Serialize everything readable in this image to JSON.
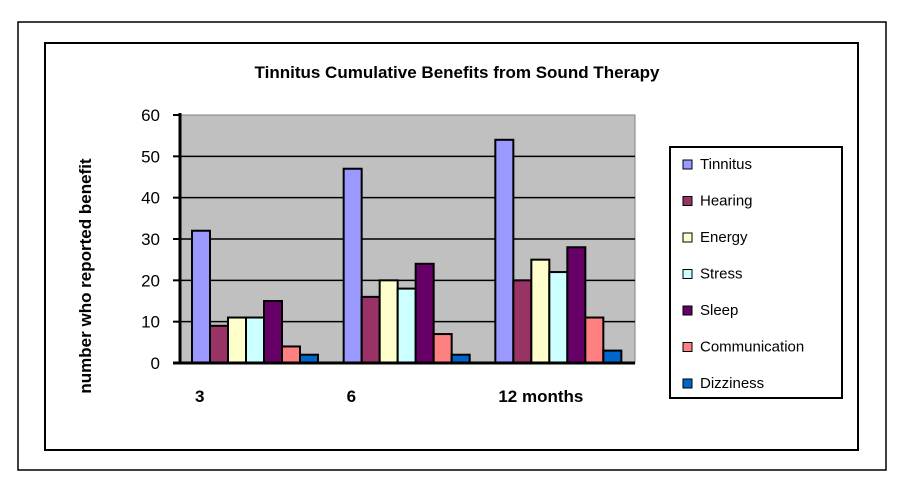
{
  "chart_data": {
    "type": "bar",
    "title": "Tinnitus Cumulative Benefits from Sound Therapy",
    "xlabel": "",
    "ylabel": "number who reported benefit",
    "categories": [
      "3",
      "6",
      "12 months"
    ],
    "ylim": [
      0,
      60
    ],
    "yticks": [
      0,
      10,
      20,
      30,
      40,
      50,
      60
    ],
    "grid": true,
    "legend_position": "right",
    "series": [
      {
        "name": "Tinnitus",
        "color": "#9999FF",
        "values": [
          32,
          47,
          54
        ]
      },
      {
        "name": "Hearing",
        "color": "#993366",
        "values": [
          9,
          16,
          20
        ]
      },
      {
        "name": "Energy",
        "color": "#FFFFCC",
        "values": [
          11,
          20,
          25
        ]
      },
      {
        "name": "Stress",
        "color": "#CCFFFF",
        "values": [
          11,
          18,
          22
        ]
      },
      {
        "name": "Sleep",
        "color": "#660066",
        "values": [
          15,
          24,
          28
        ]
      },
      {
        "name": "Communication",
        "color": "#FF8080",
        "values": [
          4,
          7,
          11
        ]
      },
      {
        "name": "Dizziness",
        "color": "#0066CC",
        "values": [
          2,
          2,
          3
        ]
      }
    ],
    "plot_background": "#C0C0C0"
  }
}
